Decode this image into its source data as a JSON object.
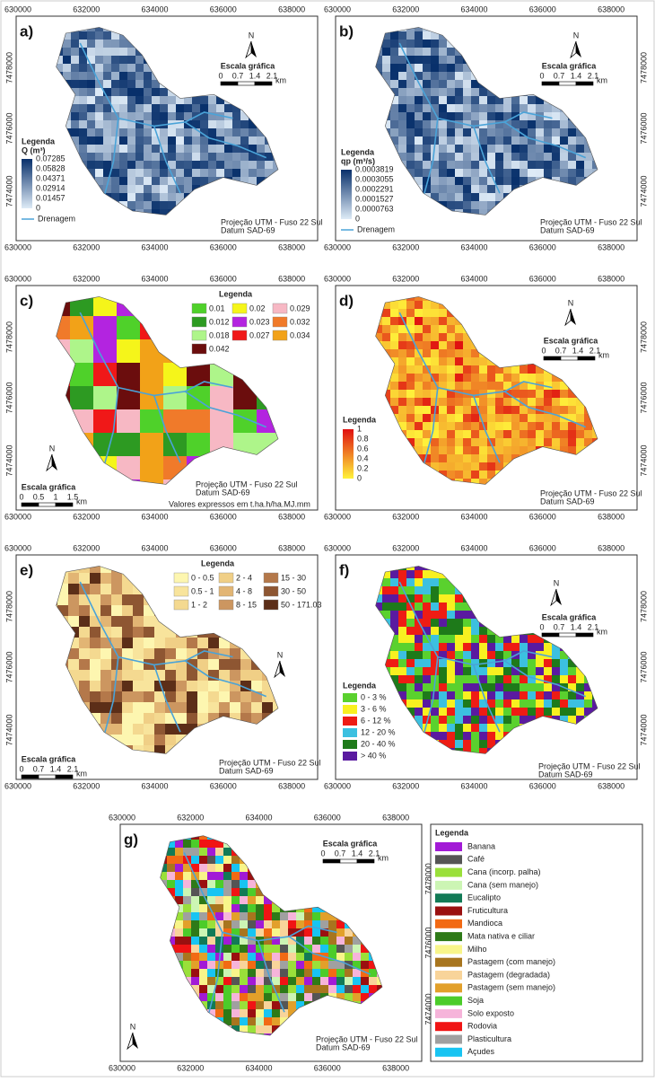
{
  "panels": [
    {
      "letter": "a)",
      "xticks": [
        "630000",
        "632000",
        "634000",
        "636000",
        "638000"
      ],
      "yticks": [
        "7478000",
        "7476000",
        "7474000"
      ],
      "legend": {
        "title": "Legenda",
        "unit": "Q (m³)",
        "ramp": [
          "#08306b",
          "#deebf7"
        ],
        "items": [
          {
            "label": "0.07285"
          },
          {
            "label": "0.05828"
          },
          {
            "label": "0.04371"
          },
          {
            "label": "0.02914"
          },
          {
            "label": "0.01457"
          },
          {
            "label": "0"
          }
        ]
      },
      "drainage": "Drenagem",
      "scale": {
        "title": "Escala gráfica",
        "labels": [
          "0",
          "0.7",
          "1.4",
          "2.1"
        ],
        "unit": "km"
      },
      "north": "N",
      "projection": [
        "Projeção UTM - Fuso 22 Sul",
        "Datum SAD-69"
      ]
    },
    {
      "letter": "b)",
      "xticks": [
        "630000",
        "632000",
        "634000",
        "636000",
        "638000"
      ],
      "yticks": [
        "7478000",
        "7476000",
        "7474000"
      ],
      "legend": {
        "title": "Legenda",
        "unit": "qp (m³/s)",
        "ramp": [
          "#08306b",
          "#deebf7"
        ],
        "items": [
          {
            "label": "0.0003819"
          },
          {
            "label": "0.0003055"
          },
          {
            "label": "0.0002291"
          },
          {
            "label": "0.0001527"
          },
          {
            "label": "0.0000763"
          },
          {
            "label": "0"
          }
        ]
      },
      "drainage": "Drenagem",
      "scale": {
        "title": "Escala gráfica",
        "labels": [
          "0",
          "0.7",
          "1.4",
          "2.1"
        ],
        "unit": "km"
      },
      "north": "N",
      "projection": [
        "Projeção UTM - Fuso 22 Sul",
        "Datum SAD-69"
      ]
    },
    {
      "letter": "c)",
      "xticks": [
        "630000",
        "632000",
        "634000",
        "636000",
        "638000"
      ],
      "yticks": [
        "7478000",
        "7476000",
        "7474000"
      ],
      "legend": {
        "title": "Legenda",
        "items": [
          {
            "label": "0.01",
            "color": "#4fd12a"
          },
          {
            "label": "0.02",
            "color": "#f5f51a"
          },
          {
            "label": "0.029",
            "color": "#f7b8c4"
          },
          {
            "label": "0.012",
            "color": "#2d9a22"
          },
          {
            "label": "0.023",
            "color": "#b324e0"
          },
          {
            "label": "0.032",
            "color": "#f07a2a"
          },
          {
            "label": "0.018",
            "color": "#aef58a"
          },
          {
            "label": "0.027",
            "color": "#f01818"
          },
          {
            "label": "0.034",
            "color": "#f2a218"
          },
          {
            "label": "0.042",
            "color": "#6b0d0d"
          }
        ]
      },
      "scale": {
        "title": "Escala gráfica",
        "labels": [
          "0",
          "0.5",
          "1",
          "1.5"
        ],
        "unit": "km"
      },
      "north": "N",
      "projection": [
        "Projeção UTM - Fuso 22 Sul",
        "Datum SAD-69"
      ],
      "note": "Valores expressos em t.ha.h/ha.MJ.mm"
    },
    {
      "letter": "d)",
      "xticks": [
        "630000",
        "632000",
        "634000",
        "636000",
        "638000"
      ],
      "yticks": [
        "7478000",
        "7476000",
        "7474000"
      ],
      "legend": {
        "title": "Legenda",
        "ramp": [
          "#e01010",
          "#fff23a"
        ],
        "items": [
          {
            "label": "1"
          },
          {
            "label": "0.8"
          },
          {
            "label": "0.6"
          },
          {
            "label": "0.4"
          },
          {
            "label": "0.2"
          },
          {
            "label": "0"
          }
        ]
      },
      "scale": {
        "title": "Escala gráfica",
        "labels": [
          "0",
          "0.7",
          "1.4",
          "2.1"
        ],
        "unit": "km"
      },
      "north": "N",
      "projection": [
        "Projeção UTM - Fuso 22 Sul",
        "Datum SAD-69"
      ]
    },
    {
      "letter": "e)",
      "xticks": [
        "630000",
        "632000",
        "634000",
        "636000",
        "638000"
      ],
      "yticks": [
        "7478000",
        "7476000",
        "7474000"
      ],
      "legend": {
        "title": "Legenda",
        "items": [
          {
            "label": "0 - 0.5",
            "color": "#fdf6b0"
          },
          {
            "label": "2 - 4",
            "color": "#f0cf86"
          },
          {
            "label": "15 - 30",
            "color": "#b4784a"
          },
          {
            "label": "0.5 - 1",
            "color": "#f8e49c"
          },
          {
            "label": "4 - 8",
            "color": "#e2b574"
          },
          {
            "label": "30 - 50",
            "color": "#8e5632"
          },
          {
            "label": "1 - 2",
            "color": "#f4d990"
          },
          {
            "label": "8 - 15",
            "color": "#cc9660"
          },
          {
            "label": "50 - 171.03",
            "color": "#5c2e18"
          }
        ]
      },
      "scale": {
        "title": "Escala gráfica",
        "labels": [
          "0",
          "0.7",
          "1.4",
          "2.1"
        ],
        "unit": "km"
      },
      "north": "N",
      "projection": [
        "Projeção UTM - Fuso 22 Sul",
        "Datum SAD-69"
      ]
    },
    {
      "letter": "f)",
      "xticks": [
        "630000",
        "632000",
        "634000",
        "636000",
        "638000"
      ],
      "yticks": [
        "7478000",
        "7476000",
        "7474000"
      ],
      "legend": {
        "title": "Legenda",
        "items": [
          {
            "label": "0 - 3 %",
            "color": "#5ad12e"
          },
          {
            "label": "3 - 6 %",
            "color": "#f8f020"
          },
          {
            "label": "6 - 12 %",
            "color": "#ee1c14"
          },
          {
            "label": "12 - 20 %",
            "color": "#3cc0e0"
          },
          {
            "label": "20 - 40 %",
            "color": "#1e7a1a"
          },
          {
            "label": "> 40 %",
            "color": "#5a1aa0"
          }
        ]
      },
      "scale": {
        "title": "Escala gráfica",
        "labels": [
          "0",
          "0.7",
          "1.4",
          "2.1"
        ],
        "unit": "km"
      },
      "north": "N",
      "projection": [
        "Projeção UTM - Fuso 22 Sul",
        "Datum SAD-69"
      ]
    },
    {
      "letter": "g)",
      "xticks": [
        "630000",
        "632000",
        "634000",
        "636000",
        "638000"
      ],
      "yticks": [
        "7478000",
        "7476000",
        "7474000"
      ],
      "legend": {
        "title": "Legenda",
        "items": [
          {
            "label": "Banana",
            "color": "#a21ad6"
          },
          {
            "label": "Café",
            "color": "#555555"
          },
          {
            "label": "Cana (incorp. palha)",
            "color": "#9ae03a"
          },
          {
            "label": "Cana (sem manejo)",
            "color": "#ccf5b4"
          },
          {
            "label": "Eucalipto",
            "color": "#127a56"
          },
          {
            "label": "Fruticultura",
            "color": "#9a1010"
          },
          {
            "label": "Mandioca",
            "color": "#f26a14"
          },
          {
            "label": "Mata nativa e ciliar",
            "color": "#2e7a18"
          },
          {
            "label": "Milho",
            "color": "#f8f58a"
          },
          {
            "label": "Pastagem (com manejo)",
            "color": "#a8751e"
          },
          {
            "label": "Pastagem (degradada)",
            "color": "#f8d49a"
          },
          {
            "label": "Pastagem (sem manejo)",
            "color": "#e2a02a"
          },
          {
            "label": "Soja",
            "color": "#4ccc2a"
          },
          {
            "label": "Solo exposto",
            "color": "#f6b4da"
          },
          {
            "label": "Rodovia",
            "color": "#f01414"
          },
          {
            "label": "Plasticultura",
            "color": "#a0a0a0"
          },
          {
            "label": "Açudes",
            "color": "#18c4f2"
          }
        ]
      },
      "scale": {
        "title": "Escala gráfica",
        "labels": [
          "0",
          "0.7",
          "1.4",
          "2.1"
        ],
        "unit": "km"
      },
      "north": "N",
      "projection": [
        "Projeção UTM - Fuso 22 Sul",
        "Datum SAD-69"
      ]
    }
  ]
}
